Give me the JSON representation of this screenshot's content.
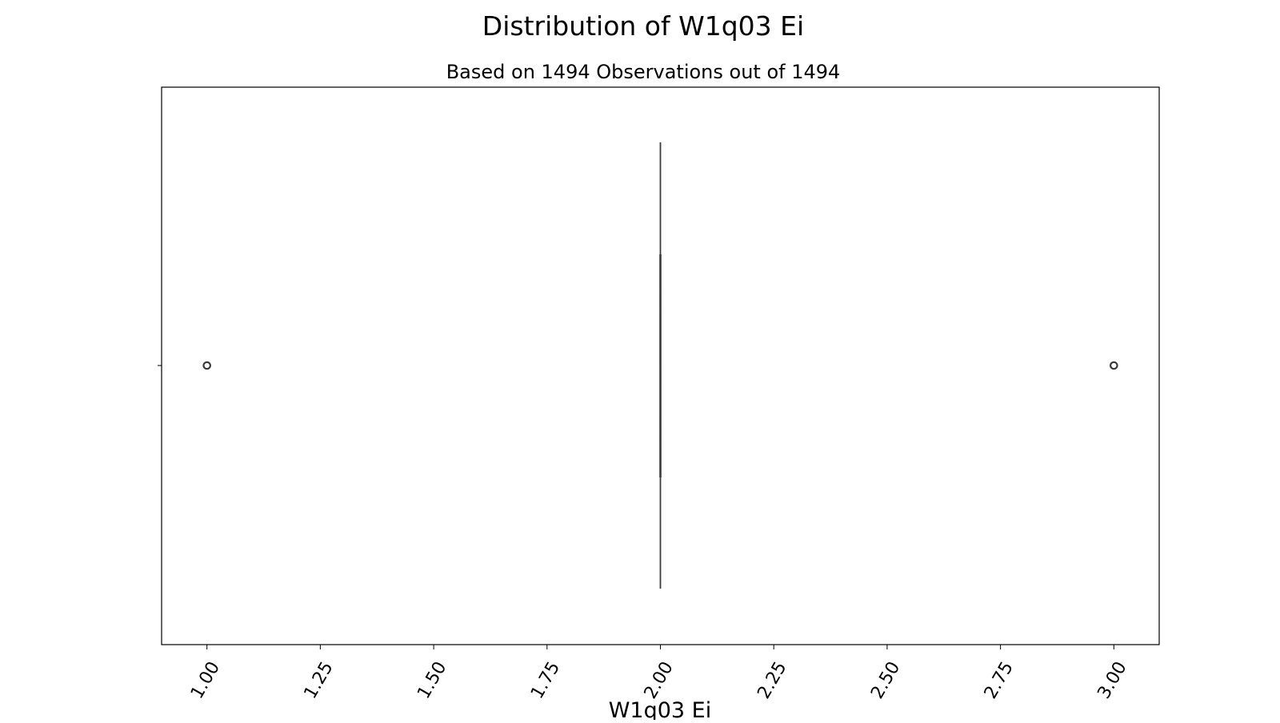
{
  "chart_data": {
    "type": "box",
    "title": "Distribution of W1q03 Ei",
    "subtitle": "Based on 1494 Observations out of 1494",
    "xlabel": "W1q03 Ei",
    "ylabel": "",
    "xlim": [
      0.9,
      3.1
    ],
    "x_ticks": [
      1.0,
      1.25,
      1.5,
      1.75,
      2.0,
      2.25,
      2.5,
      2.75,
      3.0
    ],
    "x_tick_labels": [
      "1.00",
      "1.25",
      "1.50",
      "1.75",
      "2.00",
      "2.25",
      "2.50",
      "2.75",
      "3.00"
    ],
    "tick_label_rotation": "60 degrees",
    "grid": false,
    "box": {
      "whisker_low": 2.0,
      "q1": 2.0,
      "median": 2.0,
      "q3": 2.0,
      "whisker_high": 2.0,
      "outliers": [
        1.0,
        3.0
      ]
    },
    "colors": {
      "box": "#3a3a3a",
      "outlier_edge": "#3a3a3a",
      "frame": "#000000"
    }
  }
}
